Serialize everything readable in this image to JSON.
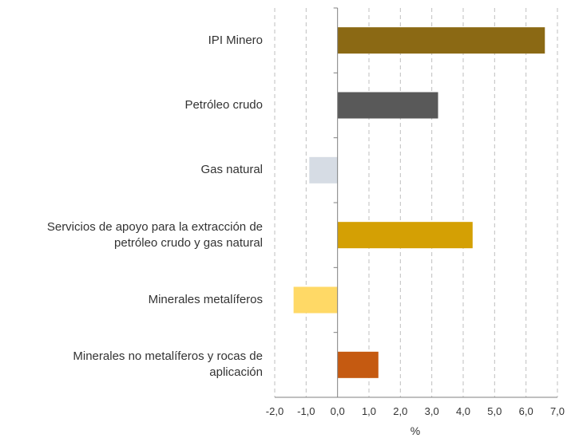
{
  "chart_data": {
    "type": "bar",
    "orientation": "horizontal",
    "title": "",
    "xlabel": "%",
    "ylabel": "",
    "xlim": [
      -2.0,
      7.0
    ],
    "x_ticks": [
      -2.0,
      -1.0,
      0.0,
      1.0,
      2.0,
      3.0,
      4.0,
      5.0,
      6.0,
      7.0
    ],
    "x_tick_labels": [
      "-2,0",
      "-1,0",
      "0,0",
      "1,0",
      "2,0",
      "3,0",
      "4,0",
      "5,0",
      "6,0",
      "7,0"
    ],
    "grid": "vertical dashed",
    "legend": "none",
    "categories": [
      "IPI Minero",
      "Petróleo crudo",
      "Gas natural",
      "Servicios de apoyo para la extracción de petróleo crudo y gas natural",
      "Minerales metalíferos",
      "Minerales no metalíferos y rocas de aplicación"
    ],
    "category_lines": [
      [
        "IPI Minero"
      ],
      [
        "Petróleo crudo"
      ],
      [
        "Gas natural"
      ],
      [
        "Servicios de apoyo para la extracción de",
        "petróleo crudo y gas natural"
      ],
      [
        "Minerales metalíferos"
      ],
      [
        "Minerales no metalíferos y rocas de",
        "aplicación"
      ]
    ],
    "values": [
      6.6,
      3.2,
      -0.9,
      4.3,
      -1.4,
      1.3
    ],
    "colors": [
      "#8B6914",
      "#595959",
      "#D6DCE4",
      "#D4A004",
      "#FFD966",
      "#C55A11"
    ]
  }
}
